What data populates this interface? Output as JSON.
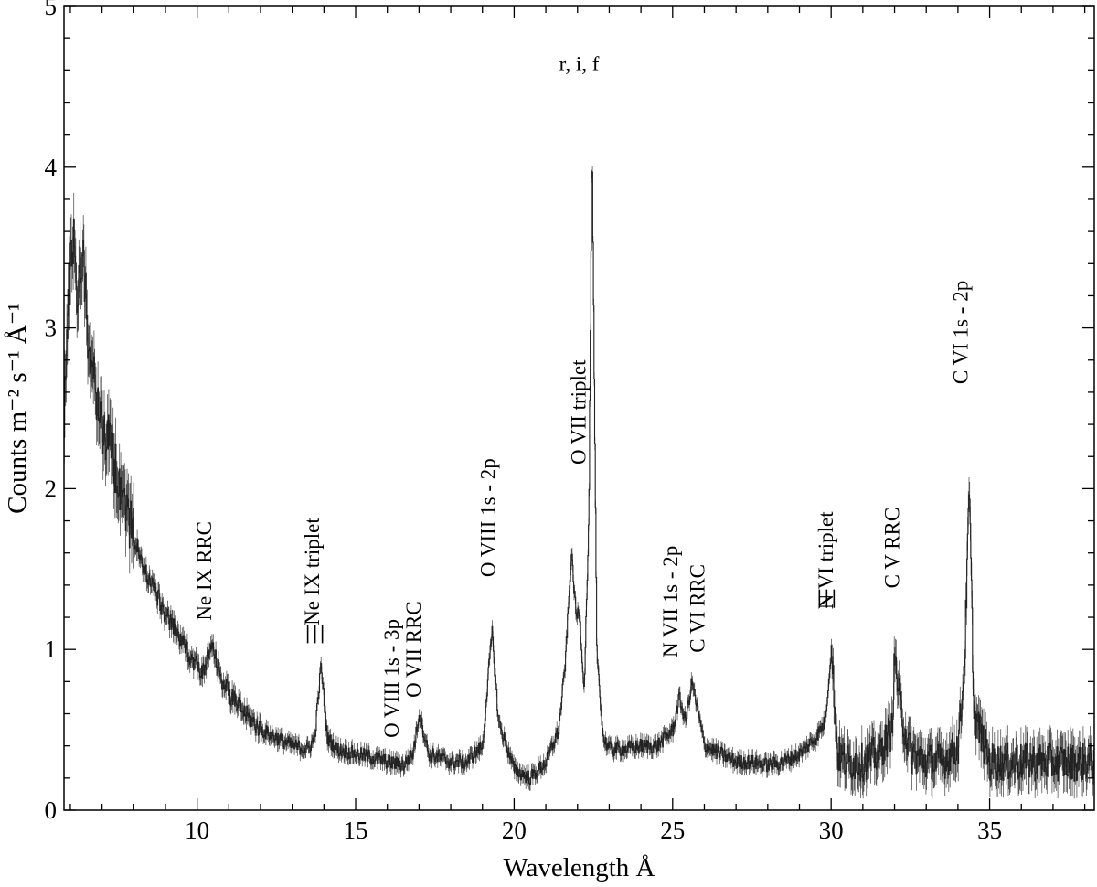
{
  "chart_data": {
    "type": "line",
    "xlabel": "Wavelength Å",
    "ylabel": "Counts m⁻² s⁻¹ Å⁻¹",
    "xlim": [
      5.8,
      38.3
    ],
    "ylim": [
      0,
      5
    ],
    "x_ticks": [
      10,
      15,
      20,
      25,
      30,
      35
    ],
    "y_ticks": [
      0,
      1,
      2,
      3,
      4,
      5
    ],
    "grid": false,
    "series": [
      {
        "x": [
          5.8,
          5.9,
          6.0,
          6.1,
          6.2,
          6.3,
          6.4,
          6.5,
          6.6,
          6.8,
          7.0,
          7.2,
          7.4,
          7.6,
          7.8,
          8.0,
          8.3,
          8.6,
          8.9,
          9.2,
          9.5,
          9.8,
          10.0,
          10.2,
          10.45,
          10.7,
          11.0,
          11.5,
          12.0,
          12.5,
          13.0,
          13.5,
          13.7,
          13.9,
          14.1,
          14.4,
          15.0,
          15.5,
          16.0,
          16.5,
          16.8,
          17.0,
          17.3,
          18.0,
          18.5,
          19.0,
          19.2,
          19.3,
          19.5,
          20.0,
          20.5,
          21.0,
          21.4,
          21.6,
          21.8,
          21.95,
          22.05,
          22.2,
          22.35,
          22.45,
          22.6,
          22.8,
          23.0,
          23.5,
          24.0,
          24.5,
          25.0,
          25.2,
          25.4,
          25.6,
          25.8,
          26.0,
          26.5,
          27.0,
          27.5,
          28.0,
          28.5,
          29.0,
          29.5,
          29.8,
          30.0,
          30.2,
          30.5,
          31.0,
          31.5,
          31.9,
          32.0,
          32.2,
          32.5,
          33.0,
          33.5,
          34.0,
          34.2,
          34.35,
          34.5,
          35.0,
          35.5,
          36.0,
          36.5,
          37.0,
          37.5,
          38.0,
          38.3
        ],
        "y": [
          2.5,
          3.0,
          3.4,
          3.6,
          3.2,
          3.35,
          3.5,
          3.1,
          2.8,
          2.6,
          2.4,
          2.3,
          2.15,
          2.0,
          1.85,
          1.7,
          1.5,
          1.4,
          1.25,
          1.15,
          1.05,
          0.95,
          0.9,
          0.85,
          1.03,
          0.85,
          0.72,
          0.6,
          0.5,
          0.45,
          0.4,
          0.38,
          0.45,
          0.9,
          0.45,
          0.38,
          0.35,
          0.33,
          0.3,
          0.28,
          0.35,
          0.6,
          0.35,
          0.3,
          0.3,
          0.4,
          0.9,
          1.1,
          0.55,
          0.25,
          0.2,
          0.3,
          0.5,
          0.9,
          1.6,
          1.2,
          1.25,
          0.75,
          1.8,
          4.15,
          1.0,
          0.45,
          0.38,
          0.38,
          0.4,
          0.4,
          0.5,
          0.7,
          0.55,
          0.8,
          0.6,
          0.4,
          0.35,
          0.3,
          0.3,
          0.28,
          0.3,
          0.35,
          0.45,
          0.55,
          1.0,
          0.35,
          0.3,
          0.3,
          0.35,
          0.5,
          0.95,
          0.6,
          0.35,
          0.3,
          0.3,
          0.4,
          0.9,
          2.0,
          0.6,
          0.3,
          0.3,
          0.3,
          0.3,
          0.3,
          0.3,
          0.3,
          0.3
        ]
      }
    ],
    "annotations": [
      {
        "text": "Ne IX RRC",
        "x": 10.45,
        "y": 1.18,
        "rotated": true
      },
      {
        "text": "Ne IX triplet",
        "x": 13.85,
        "y": 1.15,
        "rotated": true
      },
      {
        "text": "O VIII 1s - 3p",
        "x": 16.35,
        "y": 0.45,
        "rotated": true
      },
      {
        "text": "O VII RRC",
        "x": 17.05,
        "y": 0.7,
        "rotated": true
      },
      {
        "text": "O VIII 1s - 2p",
        "x": 19.4,
        "y": 1.45,
        "rotated": true
      },
      {
        "text": "O VII triplet",
        "x": 22.25,
        "y": 2.15,
        "rotated": true
      },
      {
        "text": "r, i, f",
        "x": 22.05,
        "y": 4.6,
        "rotated": false
      },
      {
        "text": "N VII 1s - 2p",
        "x": 25.15,
        "y": 0.95,
        "rotated": true
      },
      {
        "text": "C VI RRC",
        "x": 26.0,
        "y": 0.98,
        "rotated": true
      },
      {
        "text": "N VI triplet",
        "x": 30.05,
        "y": 1.25,
        "rotated": true
      },
      {
        "text": "C V RRC",
        "x": 32.15,
        "y": 1.38,
        "rotated": true
      },
      {
        "text": "C VI 1s - 2p",
        "x": 34.3,
        "y": 2.65,
        "rotated": true
      }
    ],
    "triplet_markers": [
      {
        "x": 13.72,
        "y": 1.05
      },
      {
        "x": 29.86,
        "y": 1.27
      }
    ]
  }
}
